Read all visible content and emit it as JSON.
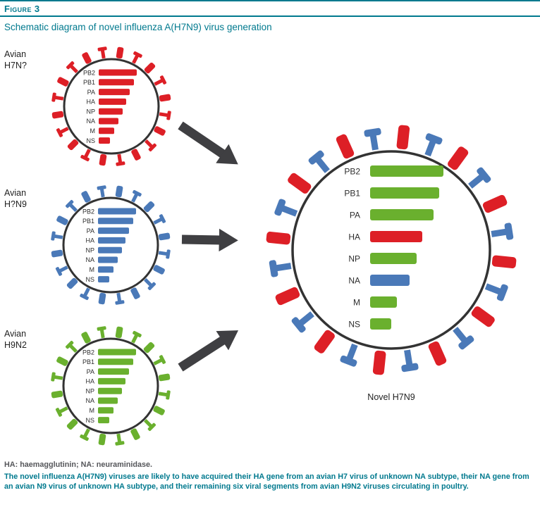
{
  "header": {
    "figure_label": "Figure 3",
    "title": "Schematic diagram of novel influenza A(H7N9) virus generation"
  },
  "genes": [
    "PB2",
    "PB1",
    "PA",
    "HA",
    "NP",
    "NA",
    "M",
    "NS"
  ],
  "colors": {
    "red": "#dd1f26",
    "blue": "#4a79b8",
    "green": "#6ab02e",
    "teal": "#00798e",
    "outline": "#333333",
    "arrow": "#3f3f42",
    "text_dark": "#222222"
  },
  "source_viruses": [
    {
      "lines": [
        "Avian",
        "H7N?"
      ],
      "spike_colors": [
        "red"
      ],
      "segment_colors": [
        "red",
        "red",
        "red",
        "red",
        "red",
        "red",
        "red",
        "red"
      ]
    },
    {
      "lines": [
        "Avian",
        "H?N9"
      ],
      "spike_colors": [
        "blue"
      ],
      "segment_colors": [
        "blue",
        "blue",
        "blue",
        "blue",
        "blue",
        "blue",
        "blue",
        "blue"
      ]
    },
    {
      "lines": [
        "Avian",
        "H9N2"
      ],
      "spike_colors": [
        "green"
      ],
      "segment_colors": [
        "green",
        "green",
        "green",
        "green",
        "green",
        "green",
        "green",
        "green"
      ]
    }
  ],
  "novel_virus": {
    "label": "Novel H7N9",
    "spike_colors": [
      "red",
      "blue"
    ],
    "segment_colors": [
      "green",
      "green",
      "green",
      "red",
      "green",
      "blue",
      "green",
      "green"
    ]
  },
  "footnote": "HA: haemagglutinin; NA: neuraminidase.",
  "caption": "The novel influenza A(H7N9) viruses are likely to have acquired their HA gene from an avian H7 virus of unknown NA subtype, their NA gene from an avian N9 virus of unknown HA subtype, and their remaining six viral segments from avian H9N2 viruses circulating in poultry."
}
